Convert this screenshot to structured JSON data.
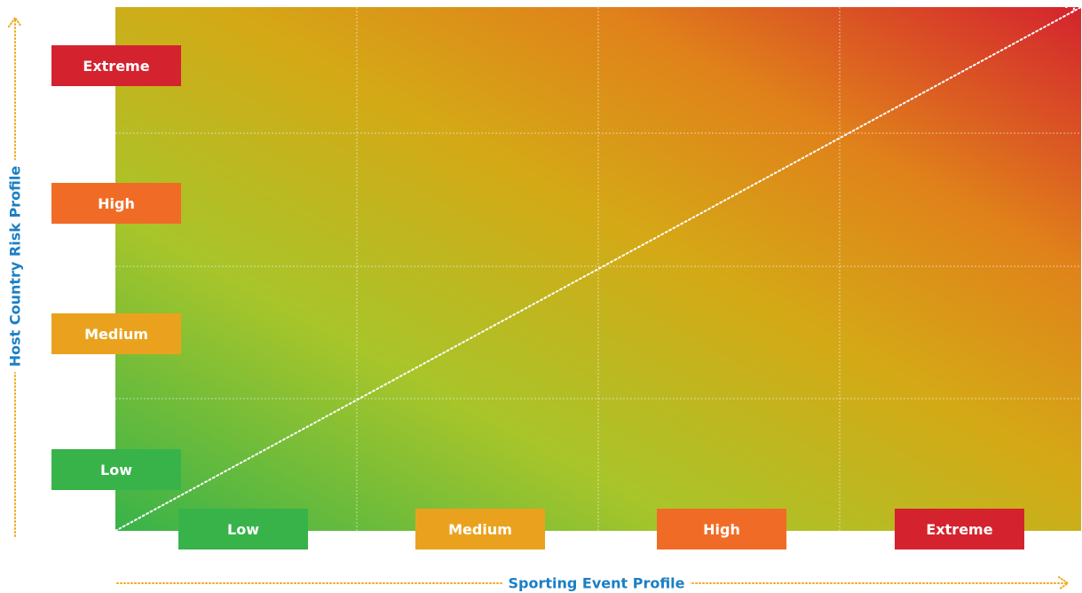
{
  "colors": {
    "low": "#37b34a",
    "medium": "#eaa21e",
    "high": "#f06c26",
    "extreme": "#d4232e",
    "axis_title": "#1b7fc4",
    "arrow": "#f0a81c"
  },
  "y_axis": {
    "title": "Host Country Risk Profile",
    "levels": [
      {
        "label": "Extreme",
        "color_key": "extreme"
      },
      {
        "label": "High",
        "color_key": "high"
      },
      {
        "label": "Medium",
        "color_key": "medium"
      },
      {
        "label": "Low",
        "color_key": "low"
      }
    ]
  },
  "x_axis": {
    "title": "Sporting Event Profile",
    "levels": [
      {
        "label": "Low",
        "color_key": "low"
      },
      {
        "label": "Medium",
        "color_key": "medium"
      },
      {
        "label": "High",
        "color_key": "high"
      },
      {
        "label": "Extreme",
        "color_key": "extreme"
      }
    ]
  }
}
